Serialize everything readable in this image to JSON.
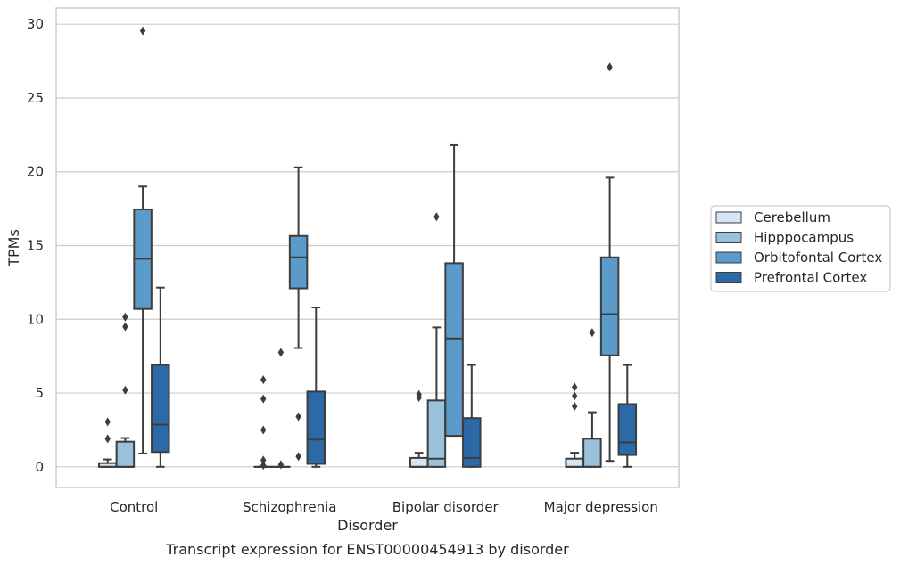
{
  "chart_data": {
    "type": "box",
    "caption": "Transcript expression for ENST00000454913 by disorder",
    "xlabel": "Disorder",
    "ylabel": "TPMs",
    "ylim": [
      -1.4,
      31.1
    ],
    "yticks": [
      0,
      5,
      10,
      15,
      20,
      25,
      30
    ],
    "grid": "horizontal",
    "legend_position": "right",
    "categories": [
      "Control",
      "Schizophrenia",
      "Bipolar disorder",
      "Major depression"
    ],
    "series": [
      {
        "name": "Cerebellum",
        "color": "#d6e5f3",
        "boxes": [
          {
            "whisker_low": 0,
            "q1": 0,
            "median": 0,
            "q3": 0.25,
            "whisker_high": 0.5,
            "outliers": [
              3.05,
              1.9
            ]
          },
          {
            "whisker_low": 0,
            "q1": 0,
            "median": 0,
            "q3": 0,
            "whisker_high": 0,
            "outliers": [
              5.9,
              4.6,
              2.5,
              0.45,
              0.1
            ]
          },
          {
            "whisker_low": 0,
            "q1": 0,
            "median": 0,
            "q3": 0.6,
            "whisker_high": 0.95,
            "outliers": [
              4.9,
              4.7
            ]
          },
          {
            "whisker_low": 0,
            "q1": 0,
            "median": 0,
            "q3": 0.55,
            "whisker_high": 0.95,
            "outliers": [
              5.4,
              4.8,
              4.1
            ]
          }
        ]
      },
      {
        "name": "Hipppocampus",
        "color": "#9ac1db",
        "boxes": [
          {
            "whisker_low": 0,
            "q1": 0,
            "median": 0,
            "q3": 1.7,
            "whisker_high": 1.95,
            "outliers": [
              10.15,
              9.5,
              5.2
            ]
          },
          {
            "whisker_low": 0,
            "q1": 0,
            "median": 0,
            "q3": 0,
            "whisker_high": 0,
            "outliers": [
              7.75,
              0.15
            ]
          },
          {
            "whisker_low": 0,
            "q1": 0,
            "median": 0.55,
            "q3": 4.5,
            "whisker_high": 9.45,
            "outliers": [
              16.95
            ]
          },
          {
            "whisker_low": 0,
            "q1": 0,
            "median": 0,
            "q3": 1.9,
            "whisker_high": 3.7,
            "outliers": [
              9.1
            ]
          }
        ]
      },
      {
        "name": "Orbitofontal Cortex",
        "color": "#5b9bca",
        "boxes": [
          {
            "whisker_low": 0.9,
            "q1": 10.7,
            "median": 14.1,
            "q3": 17.45,
            "whisker_high": 19.0,
            "outliers": [
              29.55
            ]
          },
          {
            "whisker_low": 8.05,
            "q1": 12.1,
            "median": 14.2,
            "q3": 15.65,
            "whisker_high": 20.3,
            "outliers": [
              3.4,
              0.7
            ]
          },
          {
            "whisker_low": 2.1,
            "q1": 2.1,
            "median": 8.7,
            "q3": 13.8,
            "whisker_high": 21.8,
            "outliers": []
          },
          {
            "whisker_low": 0.4,
            "q1": 7.55,
            "median": 10.35,
            "q3": 14.2,
            "whisker_high": 19.6,
            "outliers": [
              27.1
            ]
          }
        ]
      },
      {
        "name": "Prefrontal Cortex",
        "color": "#2b69a7",
        "boxes": [
          {
            "whisker_low": 0,
            "q1": 1.0,
            "median": 2.85,
            "q3": 6.9,
            "whisker_high": 12.15,
            "outliers": []
          },
          {
            "whisker_low": 0,
            "q1": 0.2,
            "median": 1.85,
            "q3": 5.1,
            "whisker_high": 10.8,
            "outliers": []
          },
          {
            "whisker_low": 0,
            "q1": 0,
            "median": 0.6,
            "q3": 3.3,
            "whisker_high": 6.9,
            "outliers": []
          },
          {
            "whisker_low": 0,
            "q1": 0.8,
            "median": 1.65,
            "q3": 4.25,
            "whisker_high": 6.9,
            "outliers": []
          }
        ]
      }
    ]
  }
}
